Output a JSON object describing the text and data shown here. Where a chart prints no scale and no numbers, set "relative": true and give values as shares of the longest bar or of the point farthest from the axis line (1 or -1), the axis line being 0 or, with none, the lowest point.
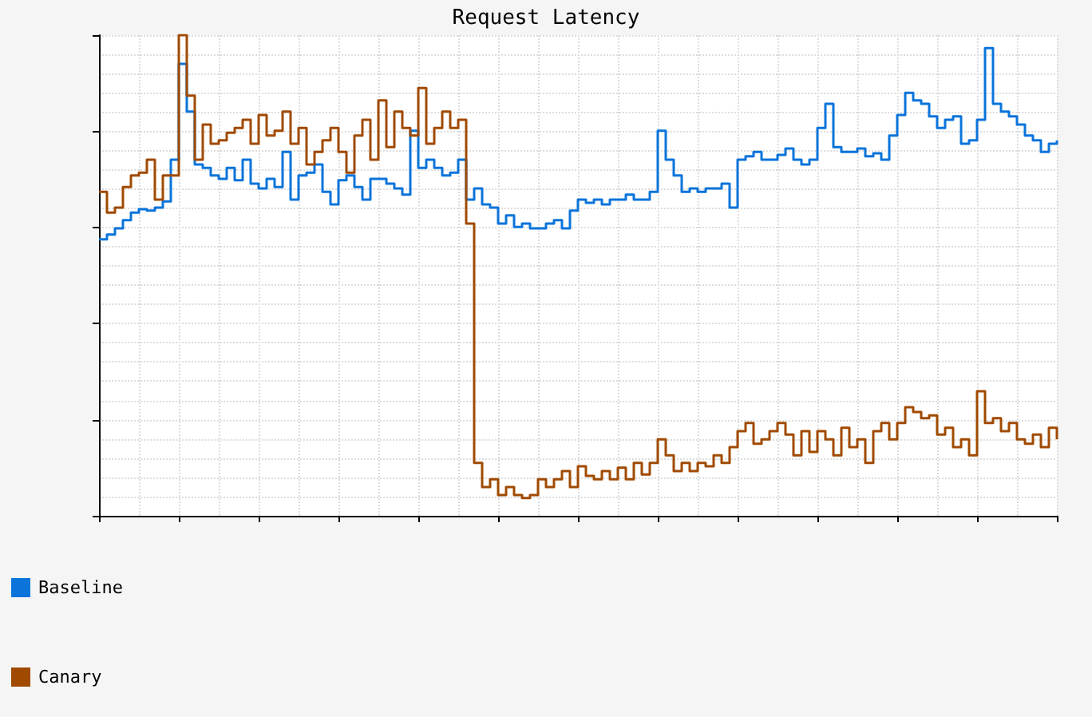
{
  "chart_data": {
    "type": "step",
    "title": "Request Latency",
    "relative": true,
    "grid": true,
    "legend": "bottom left",
    "categories": [
      null,
      null,
      null,
      null,
      null,
      null,
      null,
      null,
      null,
      null,
      null,
      null,
      null,
      null,
      null,
      null,
      null,
      null,
      null,
      null,
      null,
      null,
      null,
      null,
      null,
      null,
      null,
      null,
      null,
      null,
      null,
      null,
      null,
      null,
      null,
      null,
      null,
      null,
      null,
      null,
      null,
      null,
      null,
      null,
      null,
      null,
      null,
      null,
      null,
      null,
      null,
      null,
      null,
      null,
      null,
      null,
      null,
      null,
      null,
      null,
      null,
      null,
      null,
      null,
      null,
      null,
      null,
      null,
      null,
      null,
      null,
      null,
      null,
      null,
      null,
      null,
      null,
      null,
      null,
      null,
      null,
      null,
      null,
      null,
      null,
      null,
      null,
      null,
      null,
      null,
      null,
      null,
      null,
      null,
      null,
      null,
      null,
      null,
      null,
      null,
      null,
      null,
      null,
      null,
      null,
      null,
      null,
      null,
      null,
      null,
      null,
      null,
      null,
      null,
      null,
      null,
      null,
      null,
      null,
      null,
      null
    ],
    "series": [
      {
        "name": "Baseline",
        "color": "#0a74da",
        "values": [
          0.575,
          0.585,
          0.598,
          0.615,
          0.631,
          0.638,
          0.635,
          0.641,
          0.654,
          0.741,
          0.94,
          0.841,
          0.731,
          0.724,
          0.708,
          0.701,
          0.724,
          0.698,
          0.741,
          0.691,
          0.681,
          0.701,
          0.684,
          0.757,
          0.658,
          0.708,
          0.714,
          0.731,
          0.674,
          0.648,
          0.698,
          0.708,
          0.684,
          0.658,
          0.701,
          0.701,
          0.691,
          0.681,
          0.668,
          0.801,
          0.724,
          0.741,
          0.724,
          0.708,
          0.714,
          0.741,
          0.658,
          0.681,
          0.648,
          0.641,
          0.608,
          0.625,
          0.601,
          0.608,
          0.598,
          0.598,
          0.608,
          0.615,
          0.598,
          0.635,
          0.658,
          0.651,
          0.658,
          0.648,
          0.658,
          0.658,
          0.668,
          0.658,
          0.658,
          0.674,
          0.801,
          0.741,
          0.708,
          0.674,
          0.681,
          0.674,
          0.681,
          0.681,
          0.691,
          0.641,
          0.741,
          0.748,
          0.757,
          0.741,
          0.741,
          0.751,
          0.764,
          0.741,
          0.731,
          0.741,
          0.807,
          0.857,
          0.767,
          0.757,
          0.757,
          0.764,
          0.748,
          0.754,
          0.741,
          0.791,
          0.834,
          0.88,
          0.864,
          0.857,
          0.831,
          0.807,
          0.824,
          0.831,
          0.774,
          0.781,
          0.824,
          0.973,
          0.857,
          0.841,
          0.831,
          0.814,
          0.791,
          0.781,
          0.757,
          0.774,
          0.781
        ]
      },
      {
        "name": "Canary",
        "color": "#a04a00",
        "values": [
          0.674,
          0.631,
          0.641,
          0.684,
          0.708,
          0.714,
          0.741,
          0.658,
          0.708,
          0.708,
          1,
          0.874,
          0.741,
          0.814,
          0.774,
          0.781,
          0.797,
          0.807,
          0.824,
          0.774,
          0.834,
          0.791,
          0.801,
          0.841,
          0.774,
          0.807,
          0.731,
          0.757,
          0.781,
          0.807,
          0.757,
          0.714,
          0.791,
          0.824,
          0.741,
          0.864,
          0.767,
          0.841,
          0.807,
          0.791,
          0.89,
          0.774,
          0.807,
          0.841,
          0.807,
          0.824,
          0.608,
          0.11,
          0.06,
          0.076,
          0.043,
          0.06,
          0.043,
          0.037,
          0.043,
          0.076,
          0.06,
          0.076,
          0.093,
          0.06,
          0.103,
          0.083,
          0.076,
          0.093,
          0.076,
          0.1,
          0.076,
          0.11,
          0.086,
          0.11,
          0.159,
          0.126,
          0.093,
          0.11,
          0.093,
          0.11,
          0.103,
          0.126,
          0.11,
          0.143,
          0.176,
          0.193,
          0.15,
          0.159,
          0.176,
          0.193,
          0.169,
          0.126,
          0.176,
          0.133,
          0.176,
          0.159,
          0.126,
          0.183,
          0.143,
          0.159,
          0.11,
          0.176,
          0.193,
          0.159,
          0.193,
          0.226,
          0.216,
          0.203,
          0.209,
          0.169,
          0.183,
          0.143,
          0.159,
          0.126,
          0.259,
          0.193,
          0.203,
          0.176,
          0.193,
          0.159,
          0.15,
          0.169,
          0.143,
          0.183,
          0.159
        ]
      }
    ]
  }
}
